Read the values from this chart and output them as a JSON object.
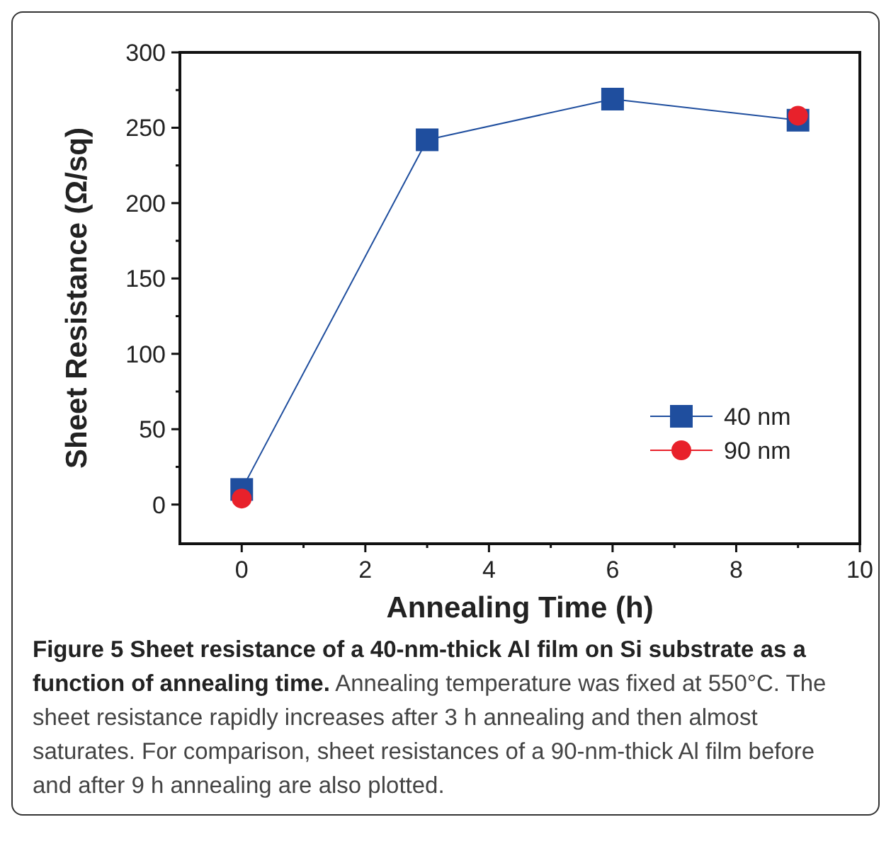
{
  "chart_data": {
    "type": "line",
    "title": "Figure 5 Sheet resistance of a 40-nm-thick Al film on Si substrate as a function of annealing time.",
    "annotations": [
      "Annealing temperature was fixed at 550°C. The sheet resistance rapidly increases after 3 h annealing and then almost saturates. For comparison, sheet resistances of a 90-nm-thick Al film before and after 9 h annealing are also plotted."
    ],
    "xlabel": "Annealing Time (h)",
    "ylabel": "Sheet Resistance (Ω/sq)",
    "xlim": [
      -1,
      10
    ],
    "ylim": [
      -26,
      300
    ],
    "xticks": [
      0,
      {
        "value": 1,
        "label": null
      },
      2,
      {
        "value": 3,
        "label": null
      },
      4,
      {
        "value": 5,
        "label": null
      },
      6,
      {
        "value": 7,
        "label": null
      },
      8,
      {
        "value": 9,
        "label": null
      },
      10
    ],
    "yticks": [
      0,
      {
        "value": 25,
        "label": null
      },
      50,
      {
        "value": 75,
        "label": null
      },
      100,
      {
        "value": 125,
        "label": null
      },
      150,
      {
        "value": 175,
        "label": null
      },
      200,
      {
        "value": 225,
        "label": null
      },
      250,
      {
        "value": 275,
        "label": null
      },
      300
    ],
    "grid": false,
    "legend": "right",
    "series": [
      {
        "name": "40 nm",
        "color": "#1f4e9e",
        "marker": "square",
        "x": [
          0,
          3,
          6,
          9
        ],
        "values": [
          10,
          242,
          269,
          255
        ]
      },
      {
        "name": "90 nm",
        "color": "#e8212b",
        "marker": "circle",
        "type": "scatter",
        "x": [
          0,
          9
        ],
        "values": [
          4,
          258
        ]
      }
    ]
  }
}
